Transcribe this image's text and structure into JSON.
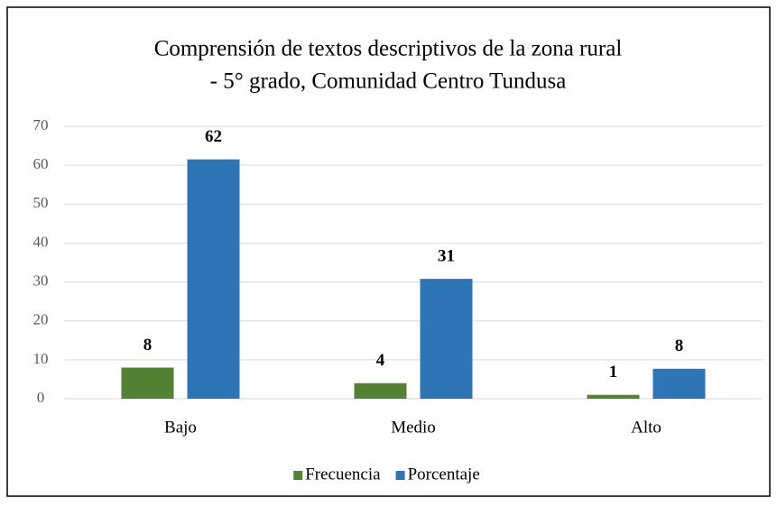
{
  "chart_data": {
    "type": "bar",
    "title": [
      "Comprensión de textos descriptivos de la zona rural",
      "- 5° grado, Comunidad Centro Tundusa"
    ],
    "categories": [
      "Bajo",
      "Medio",
      "Alto"
    ],
    "series": [
      {
        "name": "Frecuencia",
        "color": "#548235",
        "values": [
          8,
          4,
          1
        ]
      },
      {
        "name": "Porcentaje",
        "color": "#2e75b6",
        "values": [
          61.5,
          30.8,
          7.7
        ],
        "value_labels": [
          "62",
          "31",
          "8"
        ]
      }
    ],
    "ylim": [
      0,
      70
    ],
    "yticks": [
      0,
      10,
      20,
      30,
      40,
      50,
      60,
      70
    ],
    "grid": true,
    "legend": "bottom"
  }
}
